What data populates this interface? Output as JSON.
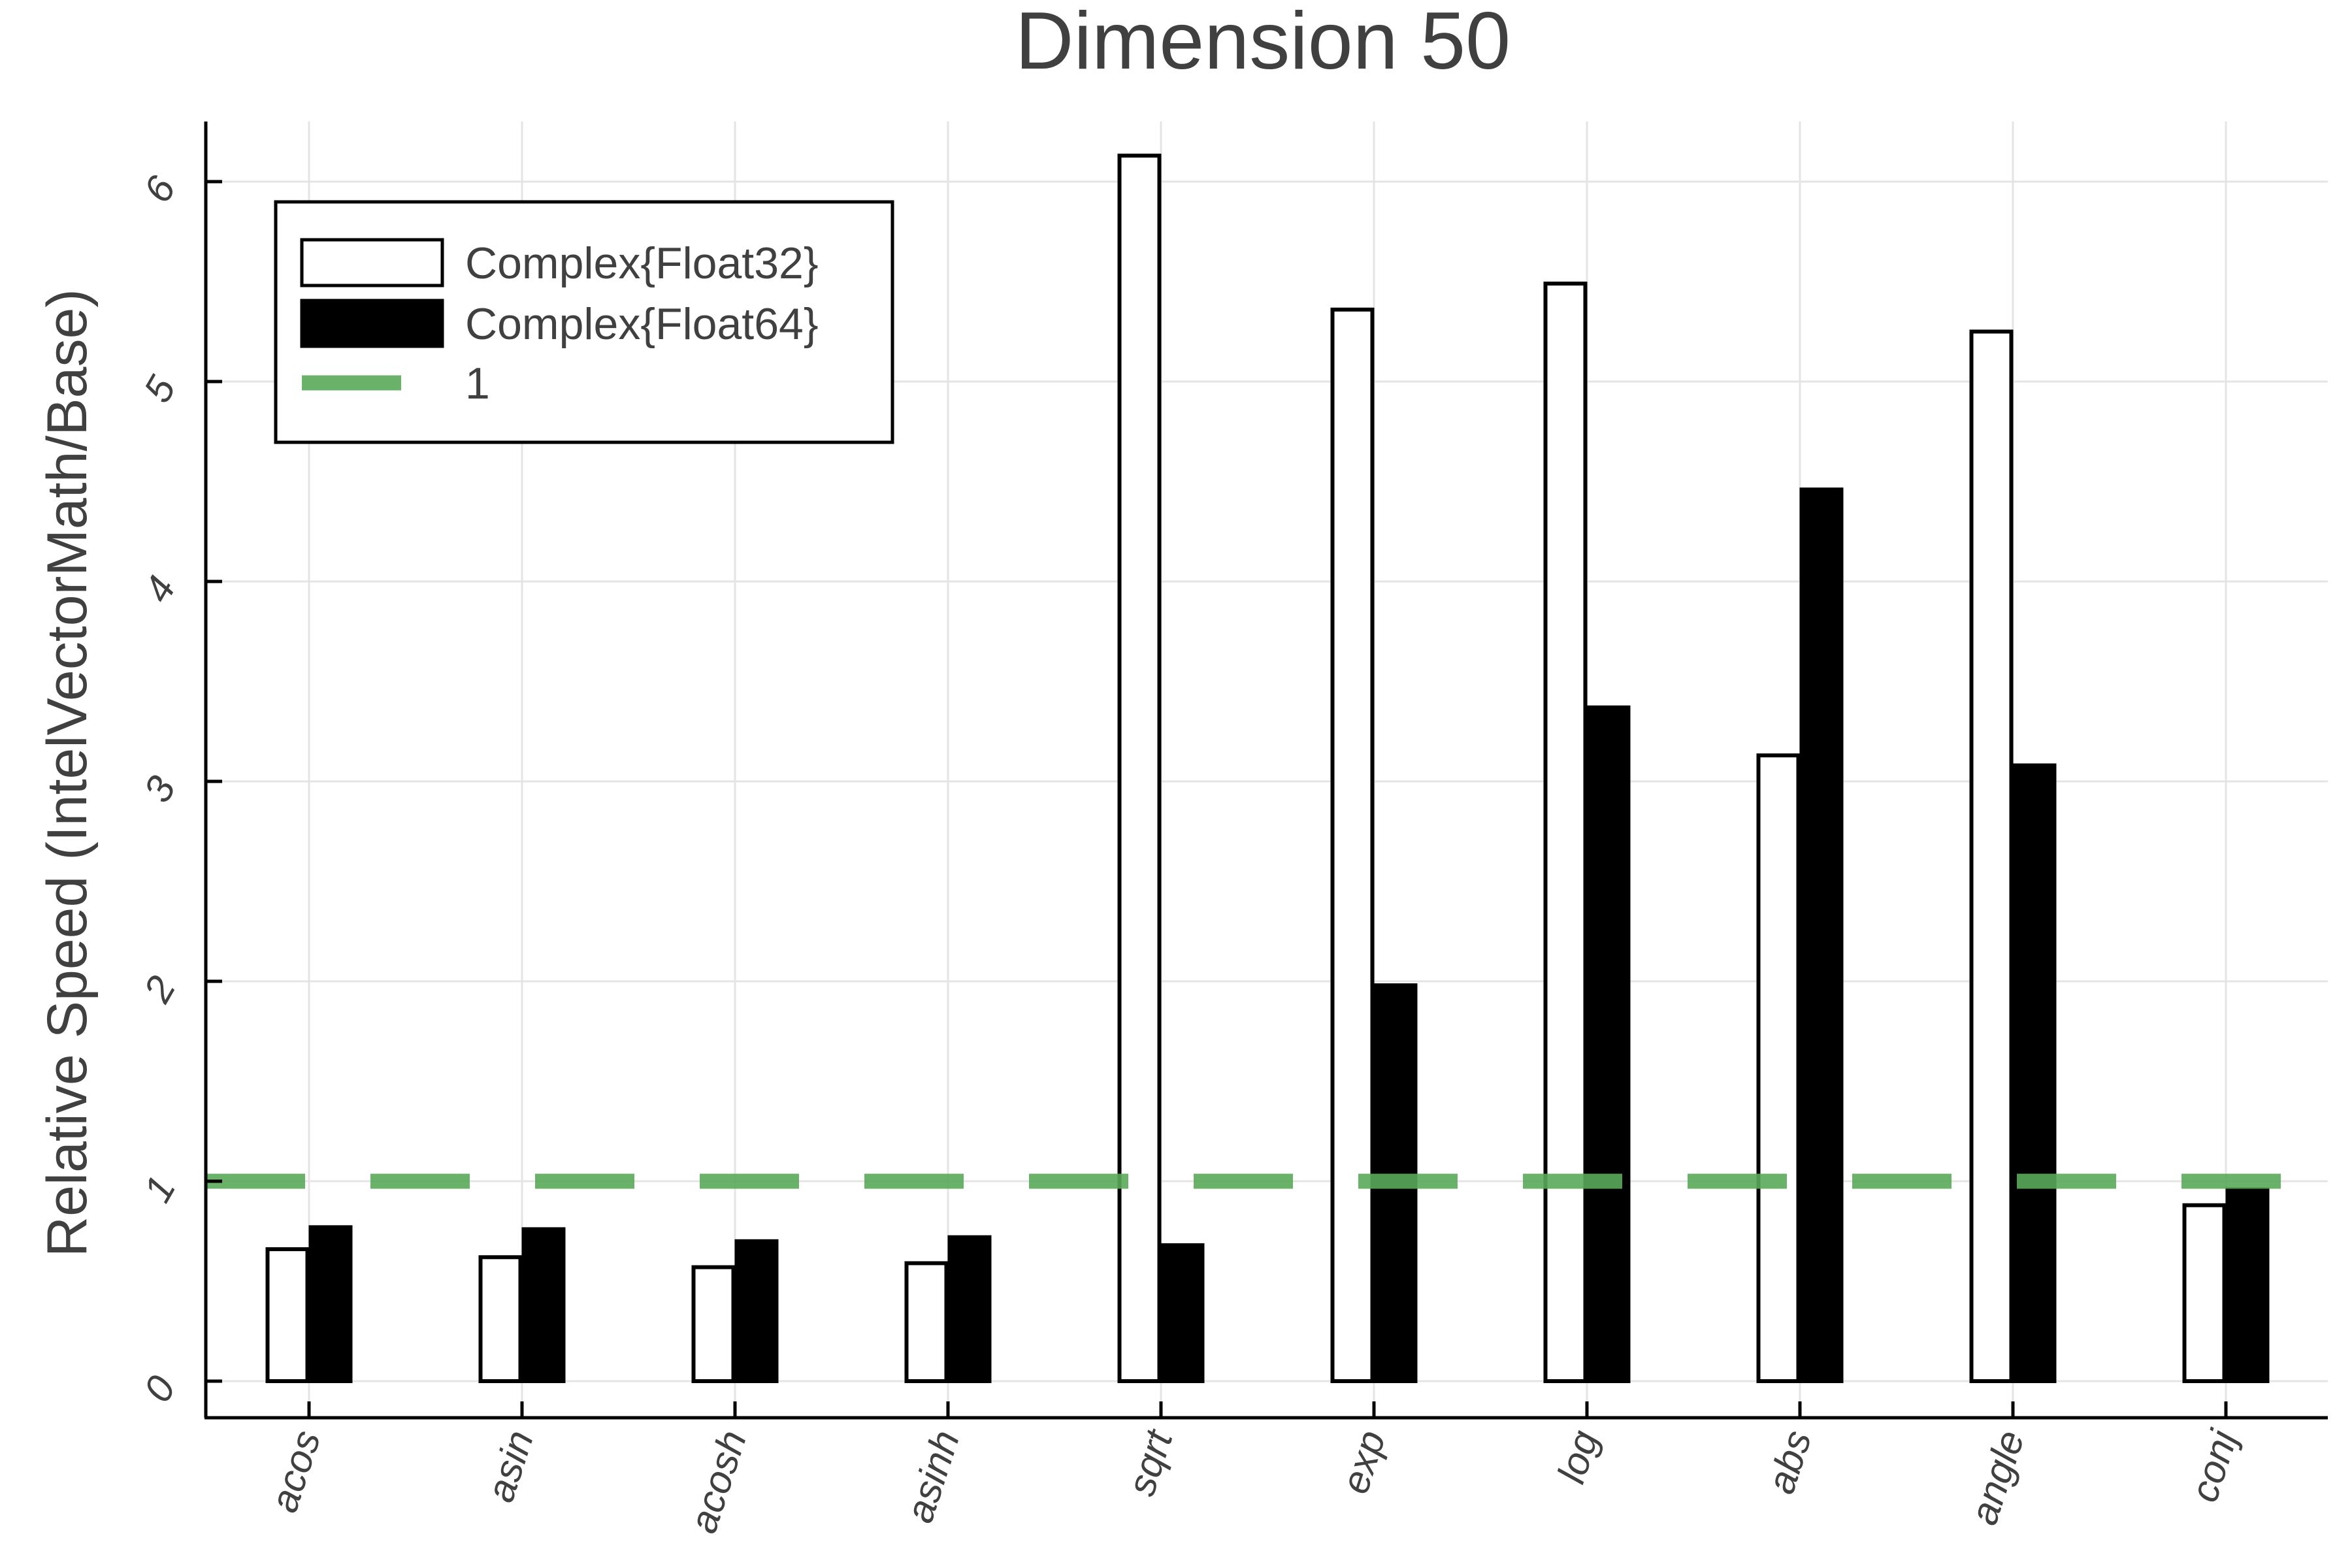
{
  "chart_data": {
    "type": "bar",
    "title": "Dimension 50",
    "xlabel": "",
    "ylabel": "Relative Speed (IntelVectorMath/Base)",
    "categories": [
      "acos",
      "asin",
      "acosh",
      "asinh",
      "sqrt",
      "exp",
      "log",
      "abs",
      "angle",
      "conj"
    ],
    "series": [
      {
        "name": "Complex{Float32}",
        "fill": "#ffffff",
        "stroke": "#000000",
        "values": [
          0.66,
          0.62,
          0.57,
          0.59,
          6.13,
          5.36,
          5.49,
          3.13,
          5.25,
          0.88
        ]
      },
      {
        "name": "Complex{Float64}",
        "fill": "#000000",
        "stroke": "#000000",
        "values": [
          0.77,
          0.76,
          0.7,
          0.72,
          0.68,
          1.98,
          3.37,
          4.46,
          3.08,
          0.96
        ]
      }
    ],
    "hline": {
      "name": "1",
      "value": 1,
      "color": "#5aaa5a",
      "style": "dashed"
    },
    "yticks": [
      0,
      1,
      2,
      3,
      4,
      5,
      6
    ],
    "ylim": [
      -0.18,
      6.3
    ],
    "grid": true,
    "legend": "top-left"
  }
}
